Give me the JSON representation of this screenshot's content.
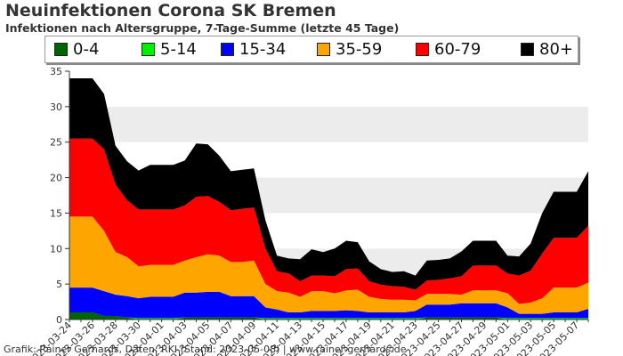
{
  "chart_data": {
    "type": "area",
    "stacked": true,
    "title": "Neuinfektionen Corona SK Bremen",
    "subtitle": "Infektionen nach Altersgruppe, 7-Tage-Summe (letzte 45 Tage)",
    "xlabel": "",
    "ylabel": "",
    "ylim": [
      0,
      35
    ],
    "yticks": [
      0,
      5,
      10,
      15,
      20,
      25,
      30,
      35
    ],
    "grid": "horizontal bands",
    "legend_position": "top",
    "x": [
      "2023-03-24",
      "2023-03-25",
      "2023-03-26",
      "2023-03-27",
      "2023-03-28",
      "2023-03-29",
      "2023-03-30",
      "2023-03-31",
      "2023-04-01",
      "2023-04-02",
      "2023-04-03",
      "2023-04-04",
      "2023-04-05",
      "2023-04-06",
      "2023-04-07",
      "2023-04-08",
      "2023-04-09",
      "2023-04-10",
      "2023-04-11",
      "2023-04-12",
      "2023-04-13",
      "2023-04-14",
      "2023-04-15",
      "2023-04-16",
      "2023-04-17",
      "2023-04-18",
      "2023-04-19",
      "2023-04-20",
      "2023-04-21",
      "2023-04-22",
      "2023-04-23",
      "2023-04-24",
      "2023-04-25",
      "2023-04-26",
      "2023-04-27",
      "2023-04-28",
      "2023-04-29",
      "2023-04-30",
      "2023-05-01",
      "2023-05-02",
      "2023-05-03",
      "2023-05-04",
      "2023-05-05",
      "2023-05-06",
      "2023-05-07",
      "2023-05-08"
    ],
    "x_tick_labels": [
      "2023-03-24",
      "2023-03-26",
      "2023-03-28",
      "2023-03-30",
      "2023-04-01",
      "2023-04-03",
      "2023-04-05",
      "2023-04-07",
      "2023-04-09",
      "2023-04-11",
      "2023-04-13",
      "2023-04-15",
      "2023-04-17",
      "2023-04-19",
      "2023-04-21",
      "2023-04-23",
      "2023-04-25",
      "2023-04-27",
      "2023-04-29",
      "2023-05-01",
      "2023-05-03",
      "2023-05-05",
      "2023-05-07"
    ],
    "series": [
      {
        "name": "0-4",
        "color": "#006400",
        "values": [
          1,
          1,
          1,
          0.5,
          0.5,
          0.3,
          0,
          0,
          0,
          0,
          0.3,
          0.3,
          0.3,
          0.3,
          0.3,
          0.3,
          0.3,
          0,
          0,
          0,
          0,
          0,
          0,
          0,
          0,
          0,
          0,
          0,
          0,
          0,
          0,
          0.3,
          0.3,
          0.3,
          0.3,
          0.3,
          0.3,
          0.3,
          0,
          0,
          0,
          0,
          0,
          0,
          0,
          0
        ]
      },
      {
        "name": "5-14",
        "color": "#00ee00",
        "values": [
          0,
          0,
          0,
          0,
          0,
          0,
          0.2,
          0.2,
          0.2,
          0.2,
          0,
          0,
          0,
          0,
          0,
          0,
          0,
          0.2,
          0.2,
          0.2,
          0.2,
          0.2,
          0.2,
          0.2,
          0.2,
          0.2,
          0.2,
          0.2,
          0.2,
          0.2,
          0.2,
          0,
          0,
          0,
          0,
          0,
          0,
          0,
          0.2,
          0.2,
          0.2,
          0.2,
          0.2,
          0.2,
          0.2,
          0.2
        ]
      },
      {
        "name": "15-34",
        "color": "#0000ff",
        "values": [
          3.5,
          3.5,
          3.5,
          3.5,
          3,
          3,
          2.8,
          3,
          3,
          3,
          3.5,
          3.5,
          3.6,
          3.6,
          3,
          3,
          3,
          1.5,
          1.2,
          0.8,
          0.8,
          1,
          1,
          1,
          1.1,
          1,
          0.8,
          0.8,
          0.8,
          0.8,
          1,
          1.8,
          1.8,
          1.8,
          2,
          2,
          2,
          2,
          1.5,
          0.6,
          0.6,
          0.6,
          0.8,
          0.8,
          0.8,
          1.3
        ]
      },
      {
        "name": "35-59",
        "color": "#ffa500",
        "values": [
          10,
          10,
          10,
          8.5,
          6,
          5.5,
          4.5,
          4.5,
          4.5,
          4.5,
          4.5,
          5,
          5.3,
          5.1,
          4.8,
          4.8,
          5,
          3.3,
          2.6,
          2.8,
          2.2,
          2.8,
          2.8,
          2.5,
          2.8,
          3,
          2.2,
          1.9,
          1.8,
          1.8,
          1.5,
          1.5,
          1.5,
          1.5,
          1.2,
          1.8,
          1.8,
          1.8,
          2,
          1.4,
          1.6,
          2.2,
          3.5,
          3.5,
          3.5,
          3.7
        ]
      },
      {
        "name": "60-79",
        "color": "#ff0000",
        "values": [
          11,
          11,
          11,
          11.5,
          9.5,
          8,
          8,
          7.8,
          7.8,
          7.8,
          7.8,
          8.5,
          8.2,
          7.6,
          7.3,
          7.5,
          7.5,
          5,
          2.8,
          2.7,
          2.2,
          2.2,
          2.2,
          2.4,
          3,
          3,
          2.2,
          2,
          1.9,
          1.8,
          1.5,
          1.9,
          2,
          2.2,
          2.6,
          3.5,
          3.5,
          3.5,
          2.8,
          4,
          4.5,
          6.3,
          7,
          7,
          7,
          8
        ]
      },
      {
        "name": "80+",
        "color": "#000000",
        "values": [
          8.5,
          8.5,
          8.5,
          7.8,
          5.5,
          5.5,
          5.5,
          6.3,
          6.3,
          6.3,
          6.3,
          7.5,
          7.3,
          6.5,
          5.5,
          5.5,
          5.5,
          4,
          2.2,
          2.1,
          3.1,
          3.7,
          3.3,
          3.9,
          4,
          3.7,
          2.8,
          2.2,
          2,
          2.2,
          2,
          2.8,
          2.8,
          2.8,
          3.5,
          3.5,
          3.5,
          3.5,
          2.5,
          2.7,
          3.8,
          5.7,
          6.5,
          6.5,
          6.5,
          7.7
        ]
      }
    ],
    "credit": "Grafik: Rainer Gerhards, Daten: RKI (Stand: 2023-05-08) | www.rainer-gerhards.de"
  }
}
